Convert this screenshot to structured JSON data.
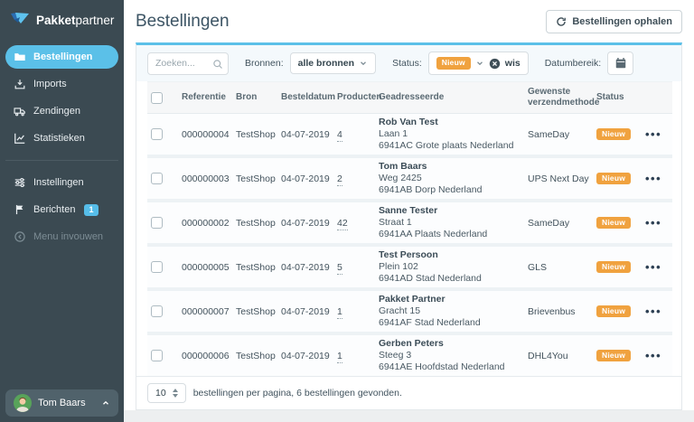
{
  "colors": {
    "accent": "#5bc0e8",
    "badge": "#f0a23f",
    "sidebar_bg": "#3b4a52"
  },
  "brand": {
    "bold": "Pakket",
    "light": "partner"
  },
  "sidebar": {
    "items": [
      {
        "id": "bestellingen",
        "label": "Bestellingen",
        "icon": "orders",
        "active": true
      },
      {
        "id": "imports",
        "label": "Imports",
        "icon": "imports"
      },
      {
        "id": "zendingen",
        "label": "Zendingen",
        "icon": "shipments"
      },
      {
        "id": "statistieken",
        "label": "Statistieken",
        "icon": "stats"
      },
      {
        "id": "instellingen",
        "label": "Instellingen",
        "icon": "settings",
        "divider_before": true
      },
      {
        "id": "berichten",
        "label": "Berichten",
        "icon": "messages",
        "badge": "1"
      },
      {
        "id": "menu-invouwen",
        "label": "Menu invouwen",
        "icon": "collapse",
        "muted": true
      }
    ],
    "user": {
      "name": "Tom Baars"
    }
  },
  "header": {
    "title": "Bestellingen",
    "fetch_button": "Bestellingen ophalen"
  },
  "filters": {
    "search_placeholder": "Zoeken...",
    "sources_label": "Bronnen:",
    "sources_value": "alle bronnen",
    "status_label": "Status:",
    "status_value": "Nieuw",
    "status_clear": "wis",
    "daterange_label": "Datumbereik:"
  },
  "table": {
    "columns": [
      "Referentie",
      "Bron",
      "Besteldatum",
      "Producten",
      "Geadresseerde",
      "Gewenste verzendmethode",
      "Status"
    ],
    "rows": [
      {
        "reference": "000000004",
        "source": "TestShop",
        "date": "04-07-2019",
        "products": "4",
        "name": "Rob Van Test",
        "address": "Laan 1",
        "city": "6941AC Grote plaats Nederland",
        "method": "SameDay",
        "status": "Nieuw"
      },
      {
        "reference": "000000003",
        "source": "TestShop",
        "date": "04-07-2019",
        "products": "2",
        "name": "Tom Baars",
        "address": "Weg 2425",
        "city": "6941AB Dorp Nederland",
        "method": "UPS Next Day",
        "status": "Nieuw"
      },
      {
        "reference": "000000002",
        "source": "TestShop",
        "date": "04-07-2019",
        "products": "42",
        "name": "Sanne Tester",
        "address": "Straat 1",
        "city": "6941AA Plaats Nederland",
        "method": "SameDay",
        "status": "Nieuw"
      },
      {
        "reference": "000000005",
        "source": "TestShop",
        "date": "04-07-2019",
        "products": "5",
        "name": "Test Persoon",
        "address": "Plein 102",
        "city": "6941AD Stad Nederland",
        "method": "GLS",
        "status": "Nieuw"
      },
      {
        "reference": "000000007",
        "source": "TestShop",
        "date": "04-07-2019",
        "products": "1",
        "name": "Pakket Partner",
        "address": "Gracht 15",
        "city": "6941AF Stad Nederland",
        "method": "Brievenbus",
        "status": "Nieuw"
      },
      {
        "reference": "000000006",
        "source": "TestShop",
        "date": "04-07-2019",
        "products": "1",
        "name": "Gerben Peters",
        "address": "Steeg 3",
        "city": "6941AE Hoofdstad Nederland",
        "method": "DHL4You",
        "status": "Nieuw"
      }
    ]
  },
  "footer": {
    "page_size": "10",
    "summary": "bestellingen per pagina, 6 bestellingen gevonden."
  }
}
